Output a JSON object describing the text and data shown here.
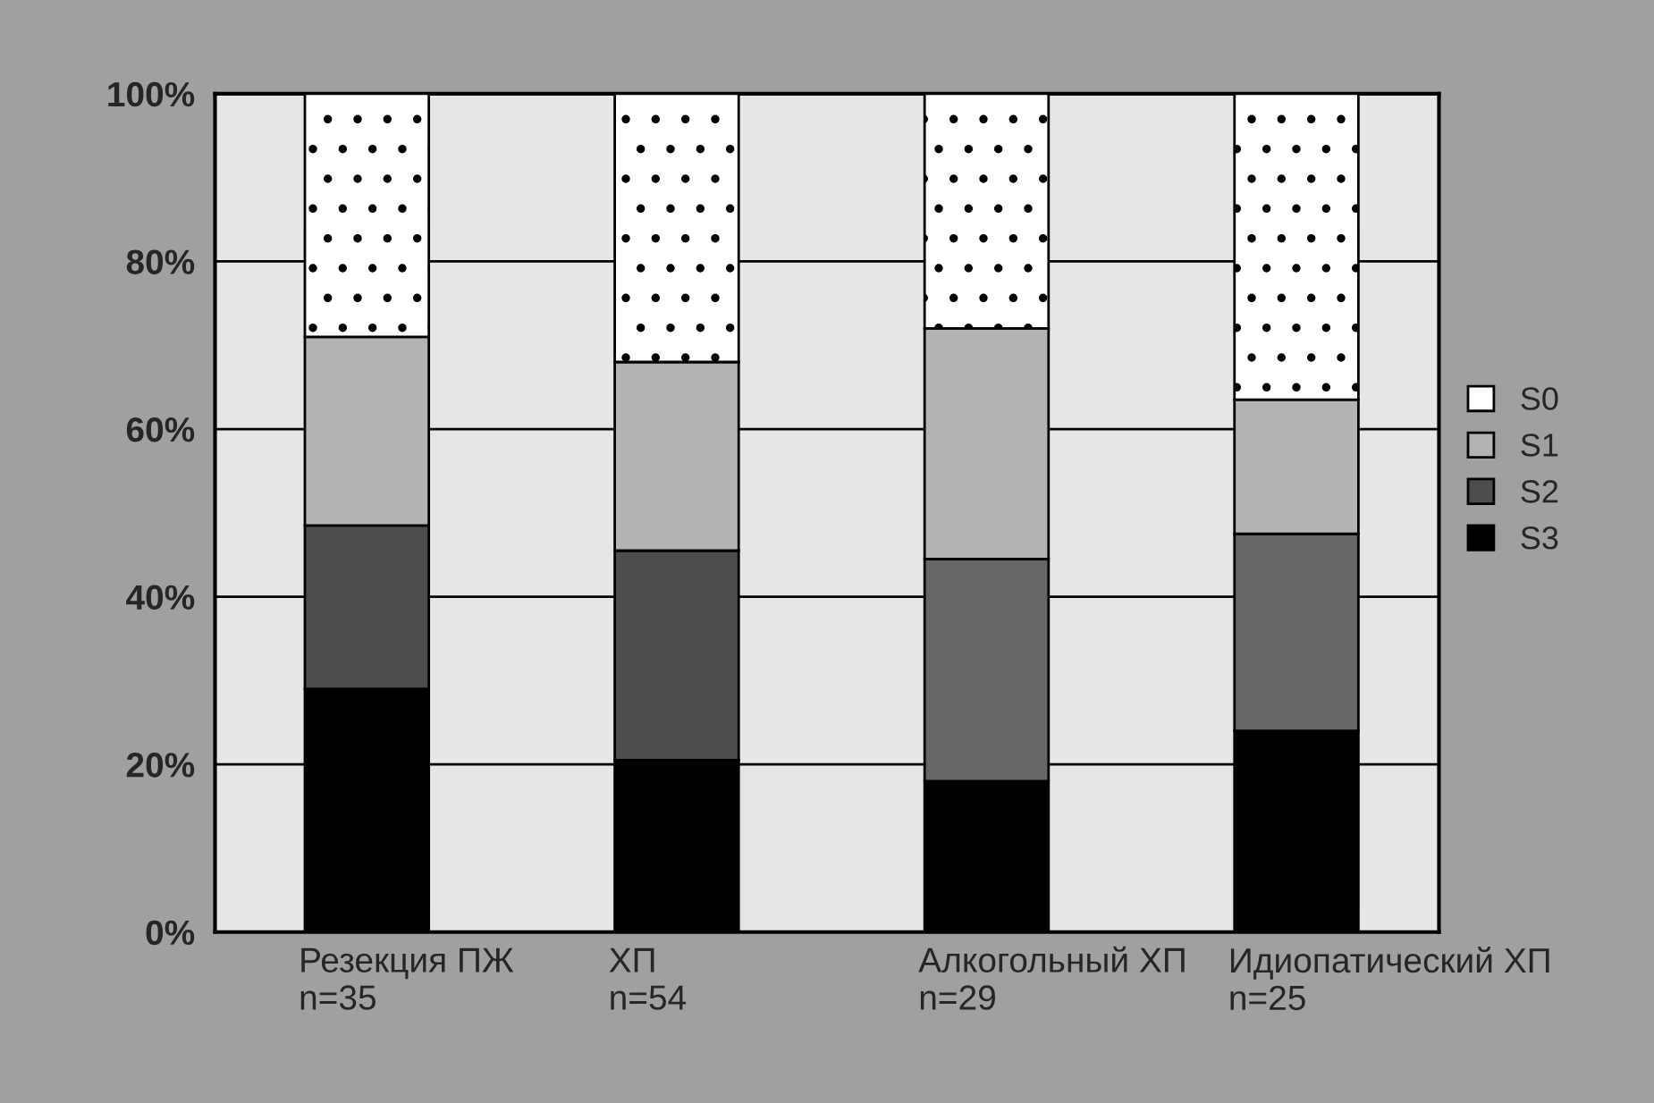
{
  "chart_data": {
    "type": "bar",
    "stacked": true,
    "categories": [
      "Резекция ПЖ\nn=35",
      "ХП\nn=54",
      "Алкогольный ХП\nn=29",
      "Идиопатический ХП\nn=25"
    ],
    "series": [
      {
        "name": "S3",
        "color": "#000000",
        "values": [
          29,
          20.5,
          18,
          24
        ]
      },
      {
        "name": "S2",
        "color": "#4d4d4d",
        "colors": [
          "#4d4d4d",
          "#4d4d4d",
          "#666666",
          "#666666"
        ],
        "values": [
          19.5,
          25,
          26.5,
          23.5
        ]
      },
      {
        "name": "S1",
        "color": "#b3b3b3",
        "values": [
          22.5,
          22.5,
          27.5,
          16
        ]
      },
      {
        "name": "S0",
        "color": "#ffffff",
        "values": [
          29,
          32,
          28,
          36.5
        ]
      }
    ],
    "ylim": [
      0,
      100
    ],
    "yticks": [
      {
        "value": 0,
        "label": "0%"
      },
      {
        "value": 20,
        "label": "20%"
      },
      {
        "value": 40,
        "label": "40%"
      },
      {
        "value": 60,
        "label": "60%"
      },
      {
        "value": 80,
        "label": "80%"
      },
      {
        "value": 100,
        "label": "100%"
      }
    ],
    "grid": "y",
    "legend": "right"
  }
}
